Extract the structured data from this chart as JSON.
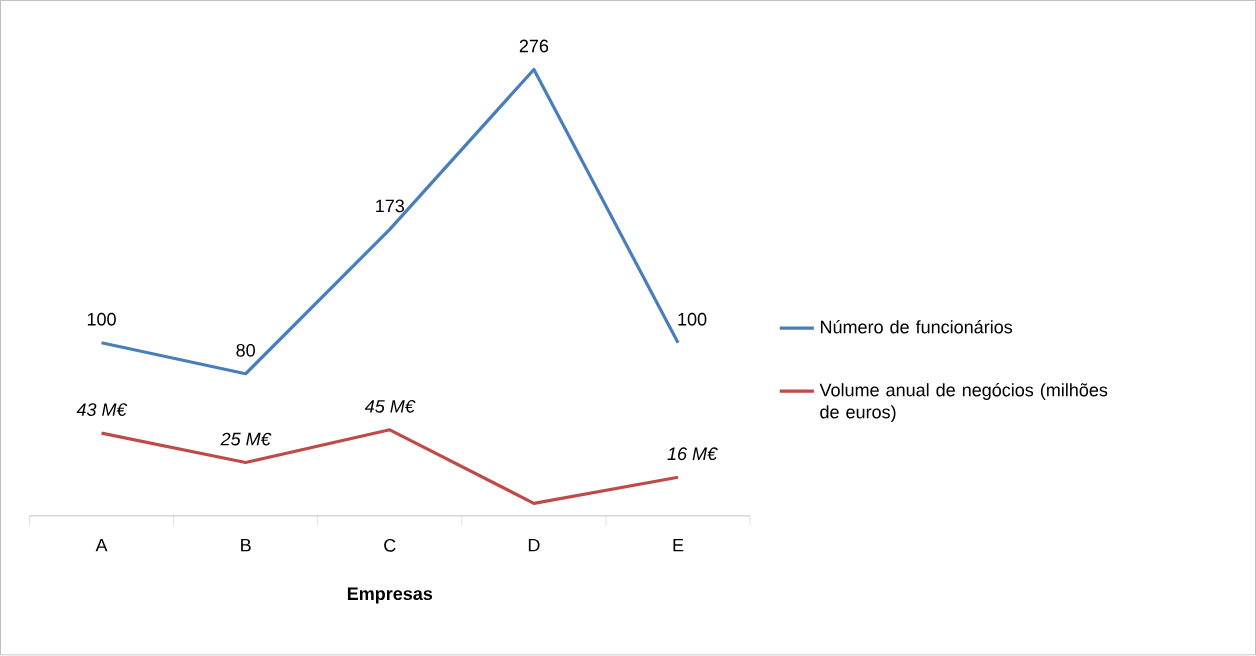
{
  "chart_data": [
    {
      "type": "line",
      "categories": [
        null,
        null,
        null,
        null,
        null
      ],
      "series": [
        {
          "name": "Número de funcionários",
          "color": "#4a7ebb",
          "values": [
            100,
            80,
            173,
            276,
            100
          ],
          "value_labels": [
            "100",
            "80",
            "173",
            "276",
            "100"
          ]
        }
      ],
      "tick_labels": false,
      "legend": "right",
      "marker": "none",
      "line_style": "solid"
    },
    {
      "type": "line",
      "xlabel": "Empresas",
      "categories": [
        "A",
        "B",
        "C",
        "D",
        "E"
      ],
      "series": [
        {
          "name": "Volume anual de negócios (milhões de euros)",
          "color": "#be4b48",
          "values": [
            43,
            25,
            45,
            0,
            16
          ],
          "value_labels": [
            "43 M€",
            "25 M€",
            "45 M€",
            null,
            "16 M€"
          ]
        }
      ],
      "tick_labels": "x",
      "legend": "right",
      "marker": "none",
      "line_style": "solid"
    }
  ]
}
